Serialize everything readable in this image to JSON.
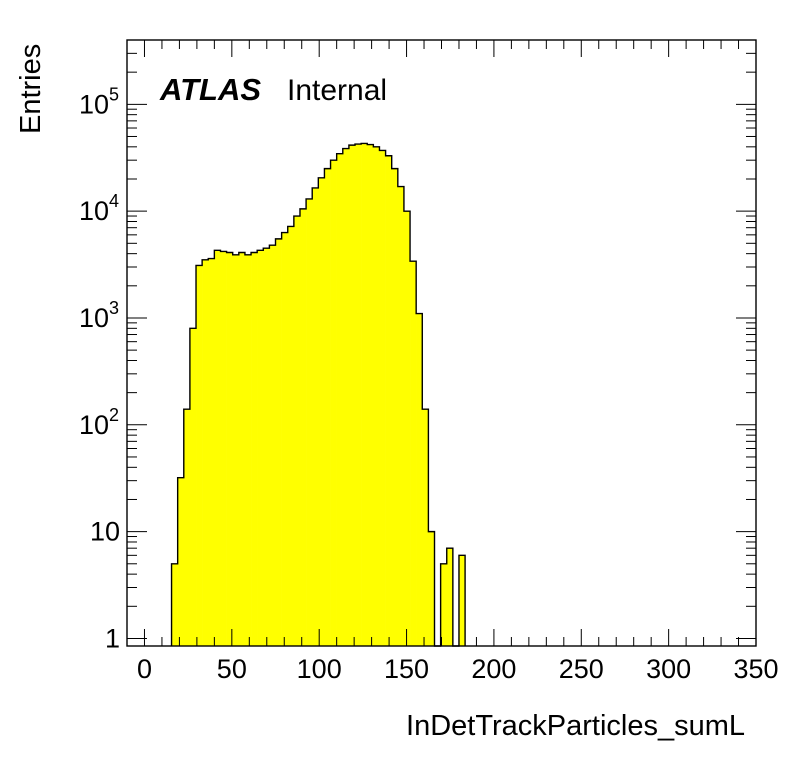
{
  "colors": {
    "fill": "#ffff00",
    "line": "#000000",
    "frame": "#000000",
    "background": "#ffffff"
  },
  "label": {
    "brand": "ATLAS",
    "status": "Internal"
  },
  "chart_data": {
    "type": "histogram",
    "xlabel": "InDetTrackParticles_sumL",
    "ylabel": "Entries",
    "xlim": [
      -10,
      350
    ],
    "ylim": [
      0.85,
      400000
    ],
    "log_y": true,
    "bin_width": 3.5,
    "bin_start": 15.5,
    "x_ticks": [
      "0",
      "50",
      "100",
      "150",
      "200",
      "250",
      "300",
      "350"
    ],
    "x_tick_values": [
      0,
      50,
      100,
      150,
      200,
      250,
      300,
      350
    ],
    "y_ticks": [
      {
        "value": 1,
        "base": "1",
        "exp": ""
      },
      {
        "value": 10,
        "base": "10",
        "exp": ""
      },
      {
        "value": 100,
        "base": "10",
        "exp": "2"
      },
      {
        "value": 1000,
        "base": "10",
        "exp": "3"
      },
      {
        "value": 10000,
        "base": "10",
        "exp": "4"
      },
      {
        "value": 100000,
        "base": "10",
        "exp": "5"
      }
    ],
    "values": [
      5,
      32,
      140,
      800,
      3100,
      3500,
      3600,
      4300,
      4200,
      4100,
      3900,
      4100,
      3900,
      4100,
      4300,
      4500,
      4800,
      5500,
      6300,
      7200,
      9000,
      10500,
      13000,
      16500,
      20500,
      25000,
      30000,
      34500,
      38500,
      41500,
      42500,
      43000,
      42000,
      40000,
      37000,
      33000,
      25000,
      17000,
      10000,
      3400,
      1100,
      140,
      10,
      0,
      5,
      7,
      0,
      6
    ]
  }
}
